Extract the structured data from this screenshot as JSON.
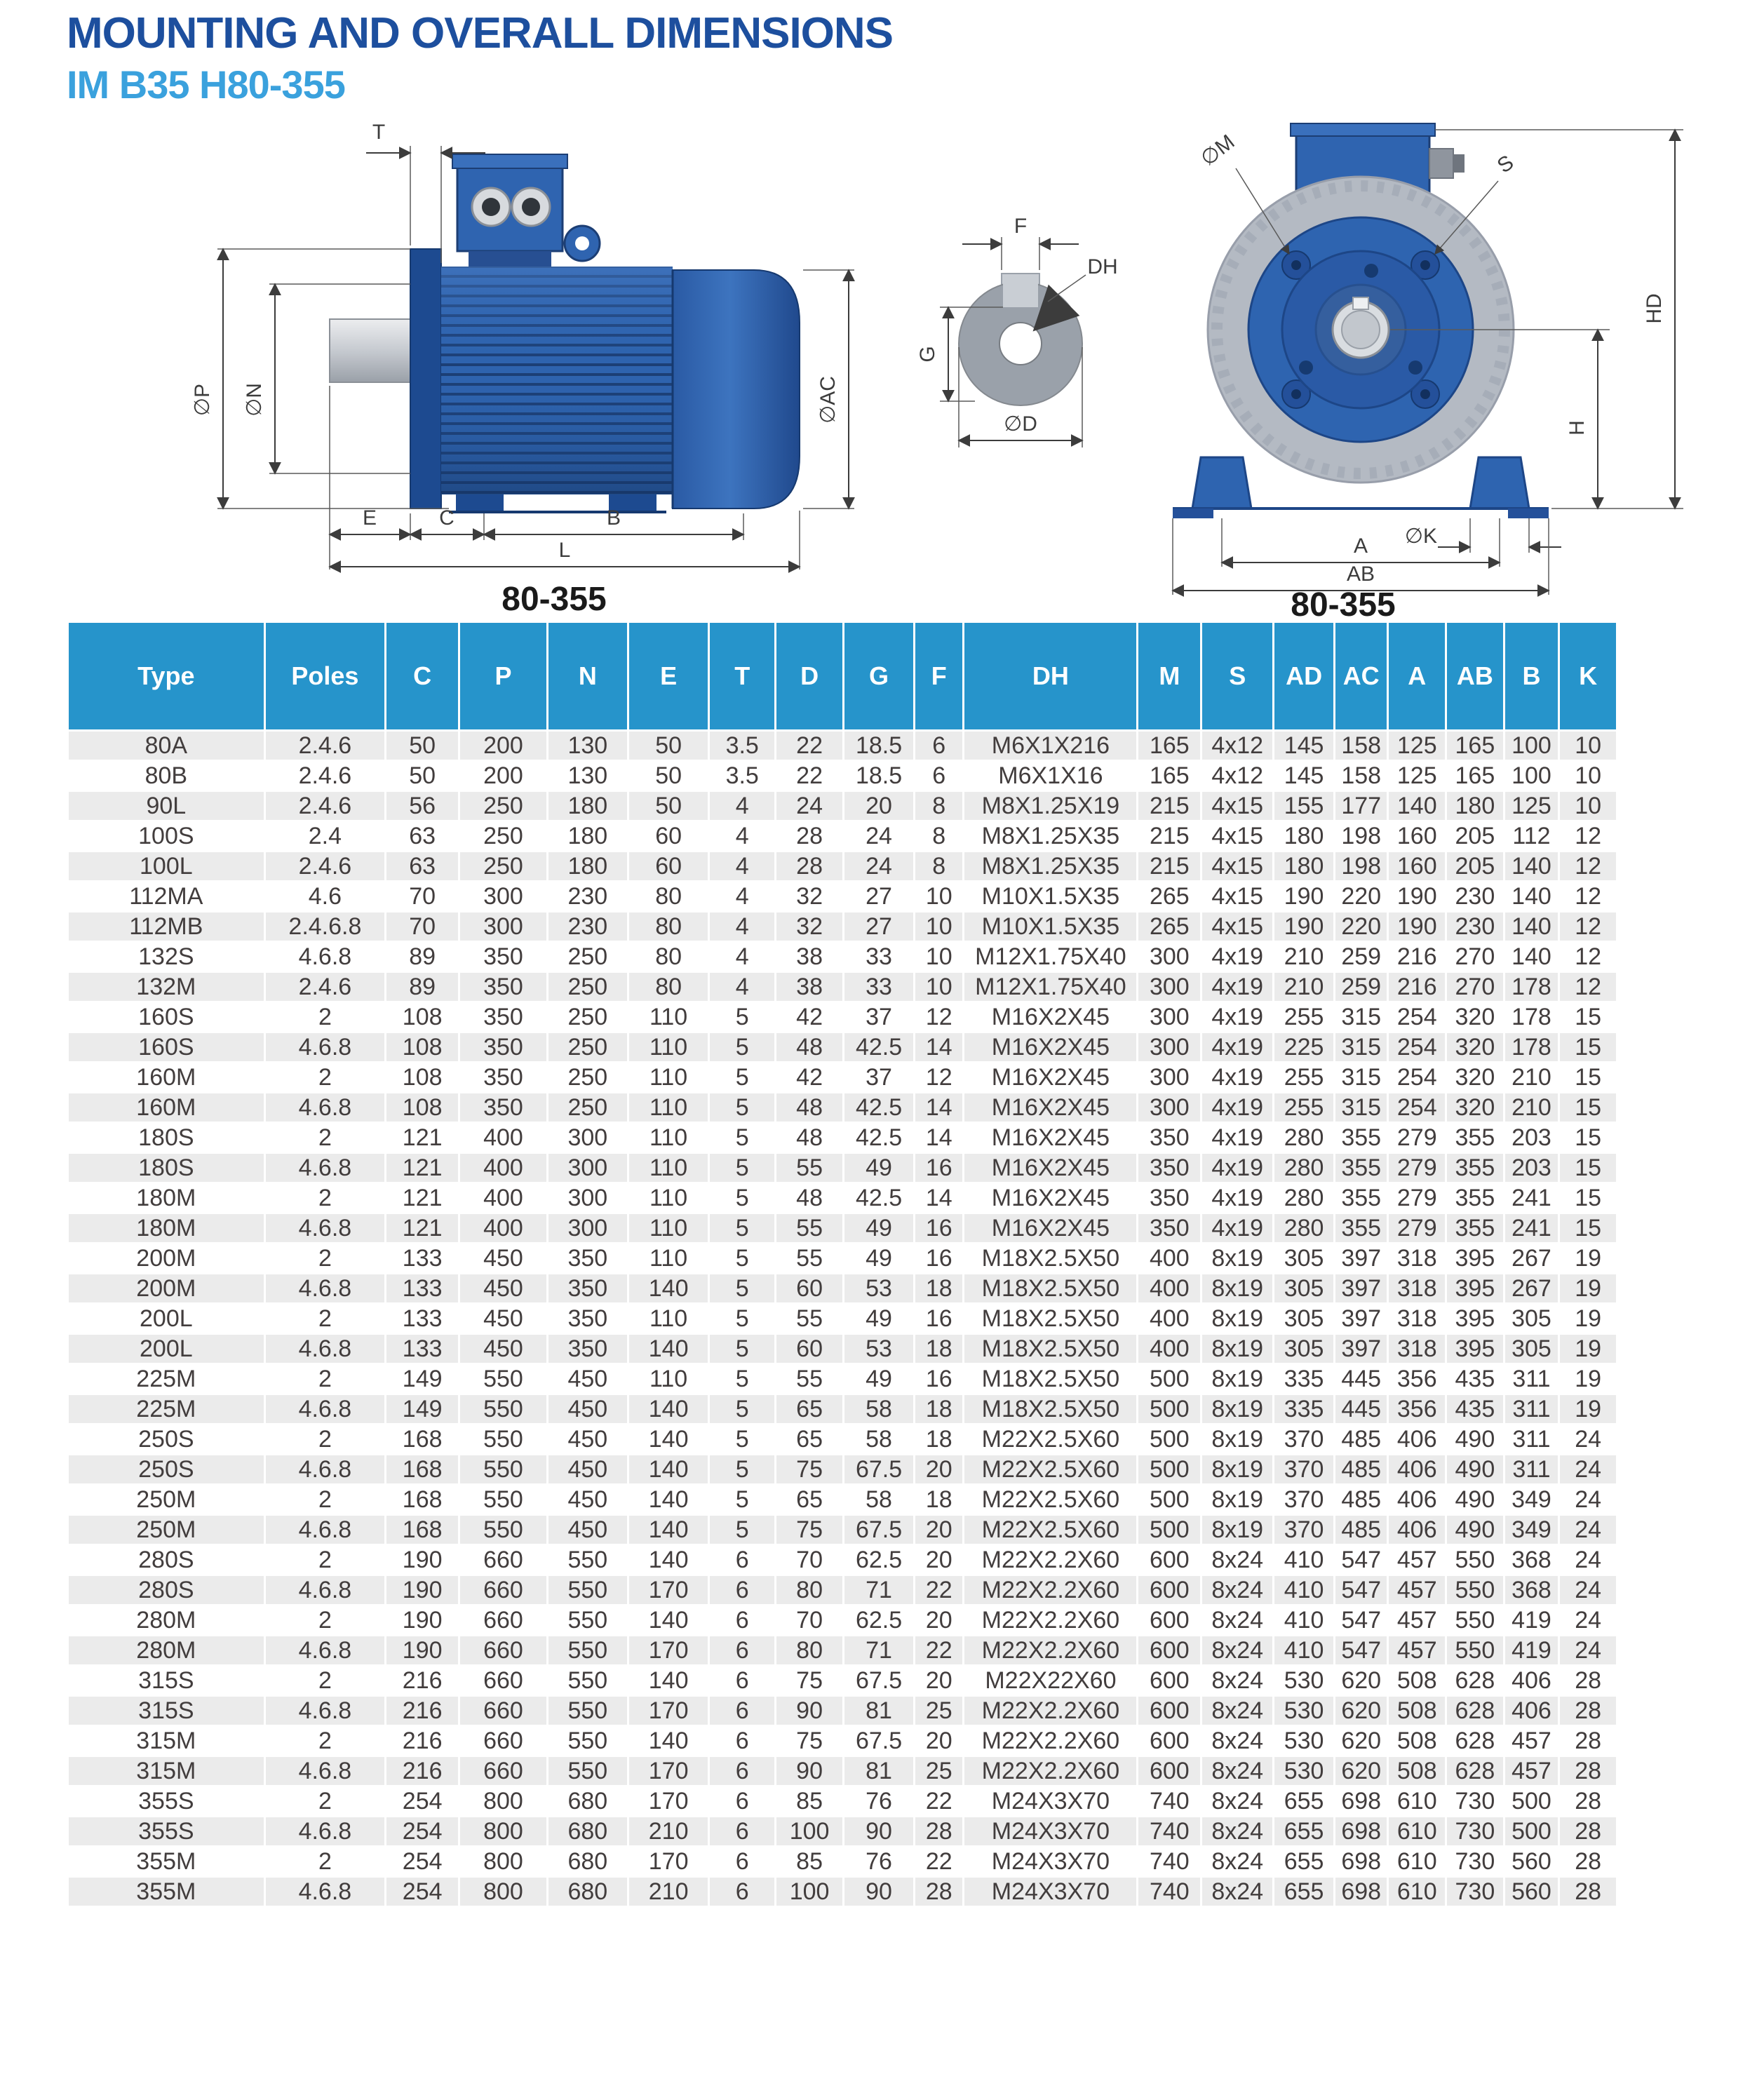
{
  "page": {
    "title": "MOUNTING AND OVERALL DIMENSIONS",
    "subtitle": "IM B35  H80-355"
  },
  "colors": {
    "title_blue": "#1d4f9e",
    "subtitle_blue": "#3aa1dd",
    "table_header_blue": "#2694cb",
    "row_stripe_gray": "#ebebeb",
    "motor_blue": "#2e63ae",
    "motor_dark_blue": "#1d4a90",
    "body_gray": "#b4bac3"
  },
  "drawings": {
    "side": {
      "caption": "80-355",
      "labels": {
        "t": "T",
        "p": "∅P",
        "n": "∅N",
        "ac": "∅AC",
        "e": "E",
        "c": "C",
        "b": "B",
        "l": "L"
      }
    },
    "section": {
      "labels": {
        "f": "F",
        "dh": "DH",
        "g": "G",
        "d": "∅D"
      }
    },
    "front": {
      "caption": "80-355",
      "labels": {
        "m": "∅M",
        "s": "S",
        "hd": "HD",
        "h": "H",
        "k": "∅K",
        "a": "A",
        "ab": "AB"
      }
    }
  },
  "table": {
    "columns": [
      "Type",
      "Poles",
      "C",
      "P",
      "N",
      "E",
      "T",
      "D",
      "G",
      "F",
      "DH",
      "M",
      "S",
      "AD",
      "AC",
      "A",
      "AB",
      "B",
      "K"
    ],
    "rows": [
      [
        "80A",
        "2.4.6",
        "50",
        "200",
        "130",
        "50",
        "3.5",
        "22",
        "18.5",
        "6",
        "M6X1X216",
        "165",
        "4x12",
        "145",
        "158",
        "125",
        "165",
        "100",
        "10"
      ],
      [
        "80B",
        "2.4.6",
        "50",
        "200",
        "130",
        "50",
        "3.5",
        "22",
        "18.5",
        "6",
        "M6X1X16",
        "165",
        "4x12",
        "145",
        "158",
        "125",
        "165",
        "100",
        "10"
      ],
      [
        "90L",
        "2.4.6",
        "56",
        "250",
        "180",
        "50",
        "4",
        "24",
        "20",
        "8",
        "M8X1.25X19",
        "215",
        "4x15",
        "155",
        "177",
        "140",
        "180",
        "125",
        "10"
      ],
      [
        "100S",
        "2.4",
        "63",
        "250",
        "180",
        "60",
        "4",
        "28",
        "24",
        "8",
        "M8X1.25X35",
        "215",
        "4x15",
        "180",
        "198",
        "160",
        "205",
        "112",
        "12"
      ],
      [
        "100L",
        "2.4.6",
        "63",
        "250",
        "180",
        "60",
        "4",
        "28",
        "24",
        "8",
        "M8X1.25X35",
        "215",
        "4x15",
        "180",
        "198",
        "160",
        "205",
        "140",
        "12"
      ],
      [
        "112MA",
        "4.6",
        "70",
        "300",
        "230",
        "80",
        "4",
        "32",
        "27",
        "10",
        "M10X1.5X35",
        "265",
        "4x15",
        "190",
        "220",
        "190",
        "230",
        "140",
        "12"
      ],
      [
        "112MB",
        "2.4.6.8",
        "70",
        "300",
        "230",
        "80",
        "4",
        "32",
        "27",
        "10",
        "M10X1.5X35",
        "265",
        "4x15",
        "190",
        "220",
        "190",
        "230",
        "140",
        "12"
      ],
      [
        "132S",
        "4.6.8",
        "89",
        "350",
        "250",
        "80",
        "4",
        "38",
        "33",
        "10",
        "M12X1.75X40",
        "300",
        "4x19",
        "210",
        "259",
        "216",
        "270",
        "140",
        "12"
      ],
      [
        "132M",
        "2.4.6",
        "89",
        "350",
        "250",
        "80",
        "4",
        "38",
        "33",
        "10",
        "M12X1.75X40",
        "300",
        "4x19",
        "210",
        "259",
        "216",
        "270",
        "178",
        "12"
      ],
      [
        "160S",
        "2",
        "108",
        "350",
        "250",
        "110",
        "5",
        "42",
        "37",
        "12",
        "M16X2X45",
        "300",
        "4x19",
        "255",
        "315",
        "254",
        "320",
        "178",
        "15"
      ],
      [
        "160S",
        "4.6.8",
        "108",
        "350",
        "250",
        "110",
        "5",
        "48",
        "42.5",
        "14",
        "M16X2X45",
        "300",
        "4x19",
        "225",
        "315",
        "254",
        "320",
        "178",
        "15"
      ],
      [
        "160M",
        "2",
        "108",
        "350",
        "250",
        "110",
        "5",
        "42",
        "37",
        "12",
        "M16X2X45",
        "300",
        "4x19",
        "255",
        "315",
        "254",
        "320",
        "210",
        "15"
      ],
      [
        "160M",
        "4.6.8",
        "108",
        "350",
        "250",
        "110",
        "5",
        "48",
        "42.5",
        "14",
        "M16X2X45",
        "300",
        "4x19",
        "255",
        "315",
        "254",
        "320",
        "210",
        "15"
      ],
      [
        "180S",
        "2",
        "121",
        "400",
        "300",
        "110",
        "5",
        "48",
        "42.5",
        "14",
        "M16X2X45",
        "350",
        "4x19",
        "280",
        "355",
        "279",
        "355",
        "203",
        "15"
      ],
      [
        "180S",
        "4.6.8",
        "121",
        "400",
        "300",
        "110",
        "5",
        "55",
        "49",
        "16",
        "M16X2X45",
        "350",
        "4x19",
        "280",
        "355",
        "279",
        "355",
        "203",
        "15"
      ],
      [
        "180M",
        "2",
        "121",
        "400",
        "300",
        "110",
        "5",
        "48",
        "42.5",
        "14",
        "M16X2X45",
        "350",
        "4x19",
        "280",
        "355",
        "279",
        "355",
        "241",
        "15"
      ],
      [
        "180M",
        "4.6.8",
        "121",
        "400",
        "300",
        "110",
        "5",
        "55",
        "49",
        "16",
        "M16X2X45",
        "350",
        "4x19",
        "280",
        "355",
        "279",
        "355",
        "241",
        "15"
      ],
      [
        "200M",
        "2",
        "133",
        "450",
        "350",
        "110",
        "5",
        "55",
        "49",
        "16",
        "M18X2.5X50",
        "400",
        "8x19",
        "305",
        "397",
        "318",
        "395",
        "267",
        "19"
      ],
      [
        "200M",
        "4.6.8",
        "133",
        "450",
        "350",
        "140",
        "5",
        "60",
        "53",
        "18",
        "M18X2.5X50",
        "400",
        "8x19",
        "305",
        "397",
        "318",
        "395",
        "267",
        "19"
      ],
      [
        "200L",
        "2",
        "133",
        "450",
        "350",
        "110",
        "5",
        "55",
        "49",
        "16",
        "M18X2.5X50",
        "400",
        "8x19",
        "305",
        "397",
        "318",
        "395",
        "305",
        "19"
      ],
      [
        "200L",
        "4.6.8",
        "133",
        "450",
        "350",
        "140",
        "5",
        "60",
        "53",
        "18",
        "M18X2.5X50",
        "400",
        "8x19",
        "305",
        "397",
        "318",
        "395",
        "305",
        "19"
      ],
      [
        "225M",
        "2",
        "149",
        "550",
        "450",
        "110",
        "5",
        "55",
        "49",
        "16",
        "M18X2.5X50",
        "500",
        "8x19",
        "335",
        "445",
        "356",
        "435",
        "311",
        "19"
      ],
      [
        "225M",
        "4.6.8",
        "149",
        "550",
        "450",
        "140",
        "5",
        "65",
        "58",
        "18",
        "M18X2.5X50",
        "500",
        "8x19",
        "335",
        "445",
        "356",
        "435",
        "311",
        "19"
      ],
      [
        "250S",
        "2",
        "168",
        "550",
        "450",
        "140",
        "5",
        "65",
        "58",
        "18",
        "M22X2.5X60",
        "500",
        "8x19",
        "370",
        "485",
        "406",
        "490",
        "311",
        "24"
      ],
      [
        "250S",
        "4.6.8",
        "168",
        "550",
        "450",
        "140",
        "5",
        "75",
        "67.5",
        "20",
        "M22X2.5X60",
        "500",
        "8x19",
        "370",
        "485",
        "406",
        "490",
        "311",
        "24"
      ],
      [
        "250M",
        "2",
        "168",
        "550",
        "450",
        "140",
        "5",
        "65",
        "58",
        "18",
        "M22X2.5X60",
        "500",
        "8x19",
        "370",
        "485",
        "406",
        "490",
        "349",
        "24"
      ],
      [
        "250M",
        "4.6.8",
        "168",
        "550",
        "450",
        "140",
        "5",
        "75",
        "67.5",
        "20",
        "M22X2.5X60",
        "500",
        "8x19",
        "370",
        "485",
        "406",
        "490",
        "349",
        "24"
      ],
      [
        "280S",
        "2",
        "190",
        "660",
        "550",
        "140",
        "6",
        "70",
        "62.5",
        "20",
        "M22X2.2X60",
        "600",
        "8x24",
        "410",
        "547",
        "457",
        "550",
        "368",
        "24"
      ],
      [
        "280S",
        "4.6.8",
        "190",
        "660",
        "550",
        "170",
        "6",
        "80",
        "71",
        "22",
        "M22X2.2X60",
        "600",
        "8x24",
        "410",
        "547",
        "457",
        "550",
        "368",
        "24"
      ],
      [
        "280M",
        "2",
        "190",
        "660",
        "550",
        "140",
        "6",
        "70",
        "62.5",
        "20",
        "M22X2.2X60",
        "600",
        "8x24",
        "410",
        "547",
        "457",
        "550",
        "419",
        "24"
      ],
      [
        "280M",
        "4.6.8",
        "190",
        "660",
        "550",
        "170",
        "6",
        "80",
        "71",
        "22",
        "M22X2.2X60",
        "600",
        "8x24",
        "410",
        "547",
        "457",
        "550",
        "419",
        "24"
      ],
      [
        "315S",
        "2",
        "216",
        "660",
        "550",
        "140",
        "6",
        "75",
        "67.5",
        "20",
        "M22X22X60",
        "600",
        "8x24",
        "530",
        "620",
        "508",
        "628",
        "406",
        "28"
      ],
      [
        "315S",
        "4.6.8",
        "216",
        "660",
        "550",
        "170",
        "6",
        "90",
        "81",
        "25",
        "M22X2.2X60",
        "600",
        "8x24",
        "530",
        "620",
        "508",
        "628",
        "406",
        "28"
      ],
      [
        "315M",
        "2",
        "216",
        "660",
        "550",
        "140",
        "6",
        "75",
        "67.5",
        "20",
        "M22X2.2X60",
        "600",
        "8x24",
        "530",
        "620",
        "508",
        "628",
        "457",
        "28"
      ],
      [
        "315M",
        "4.6.8",
        "216",
        "660",
        "550",
        "170",
        "6",
        "90",
        "81",
        "25",
        "M22X2.2X60",
        "600",
        "8x24",
        "530",
        "620",
        "508",
        "628",
        "457",
        "28"
      ],
      [
        "355S",
        "2",
        "254",
        "800",
        "680",
        "170",
        "6",
        "85",
        "76",
        "22",
        "M24X3X70",
        "740",
        "8x24",
        "655",
        "698",
        "610",
        "730",
        "500",
        "28"
      ],
      [
        "355S",
        "4.6.8",
        "254",
        "800",
        "680",
        "210",
        "6",
        "100",
        "90",
        "28",
        "M24X3X70",
        "740",
        "8x24",
        "655",
        "698",
        "610",
        "730",
        "500",
        "28"
      ],
      [
        "355M",
        "2",
        "254",
        "800",
        "680",
        "170",
        "6",
        "85",
        "76",
        "22",
        "M24X3X70",
        "740",
        "8x24",
        "655",
        "698",
        "610",
        "730",
        "560",
        "28"
      ],
      [
        "355M",
        "4.6.8",
        "254",
        "800",
        "680",
        "210",
        "6",
        "100",
        "90",
        "28",
        "M24X3X70",
        "740",
        "8x24",
        "655",
        "698",
        "610",
        "730",
        "560",
        "28"
      ]
    ]
  }
}
